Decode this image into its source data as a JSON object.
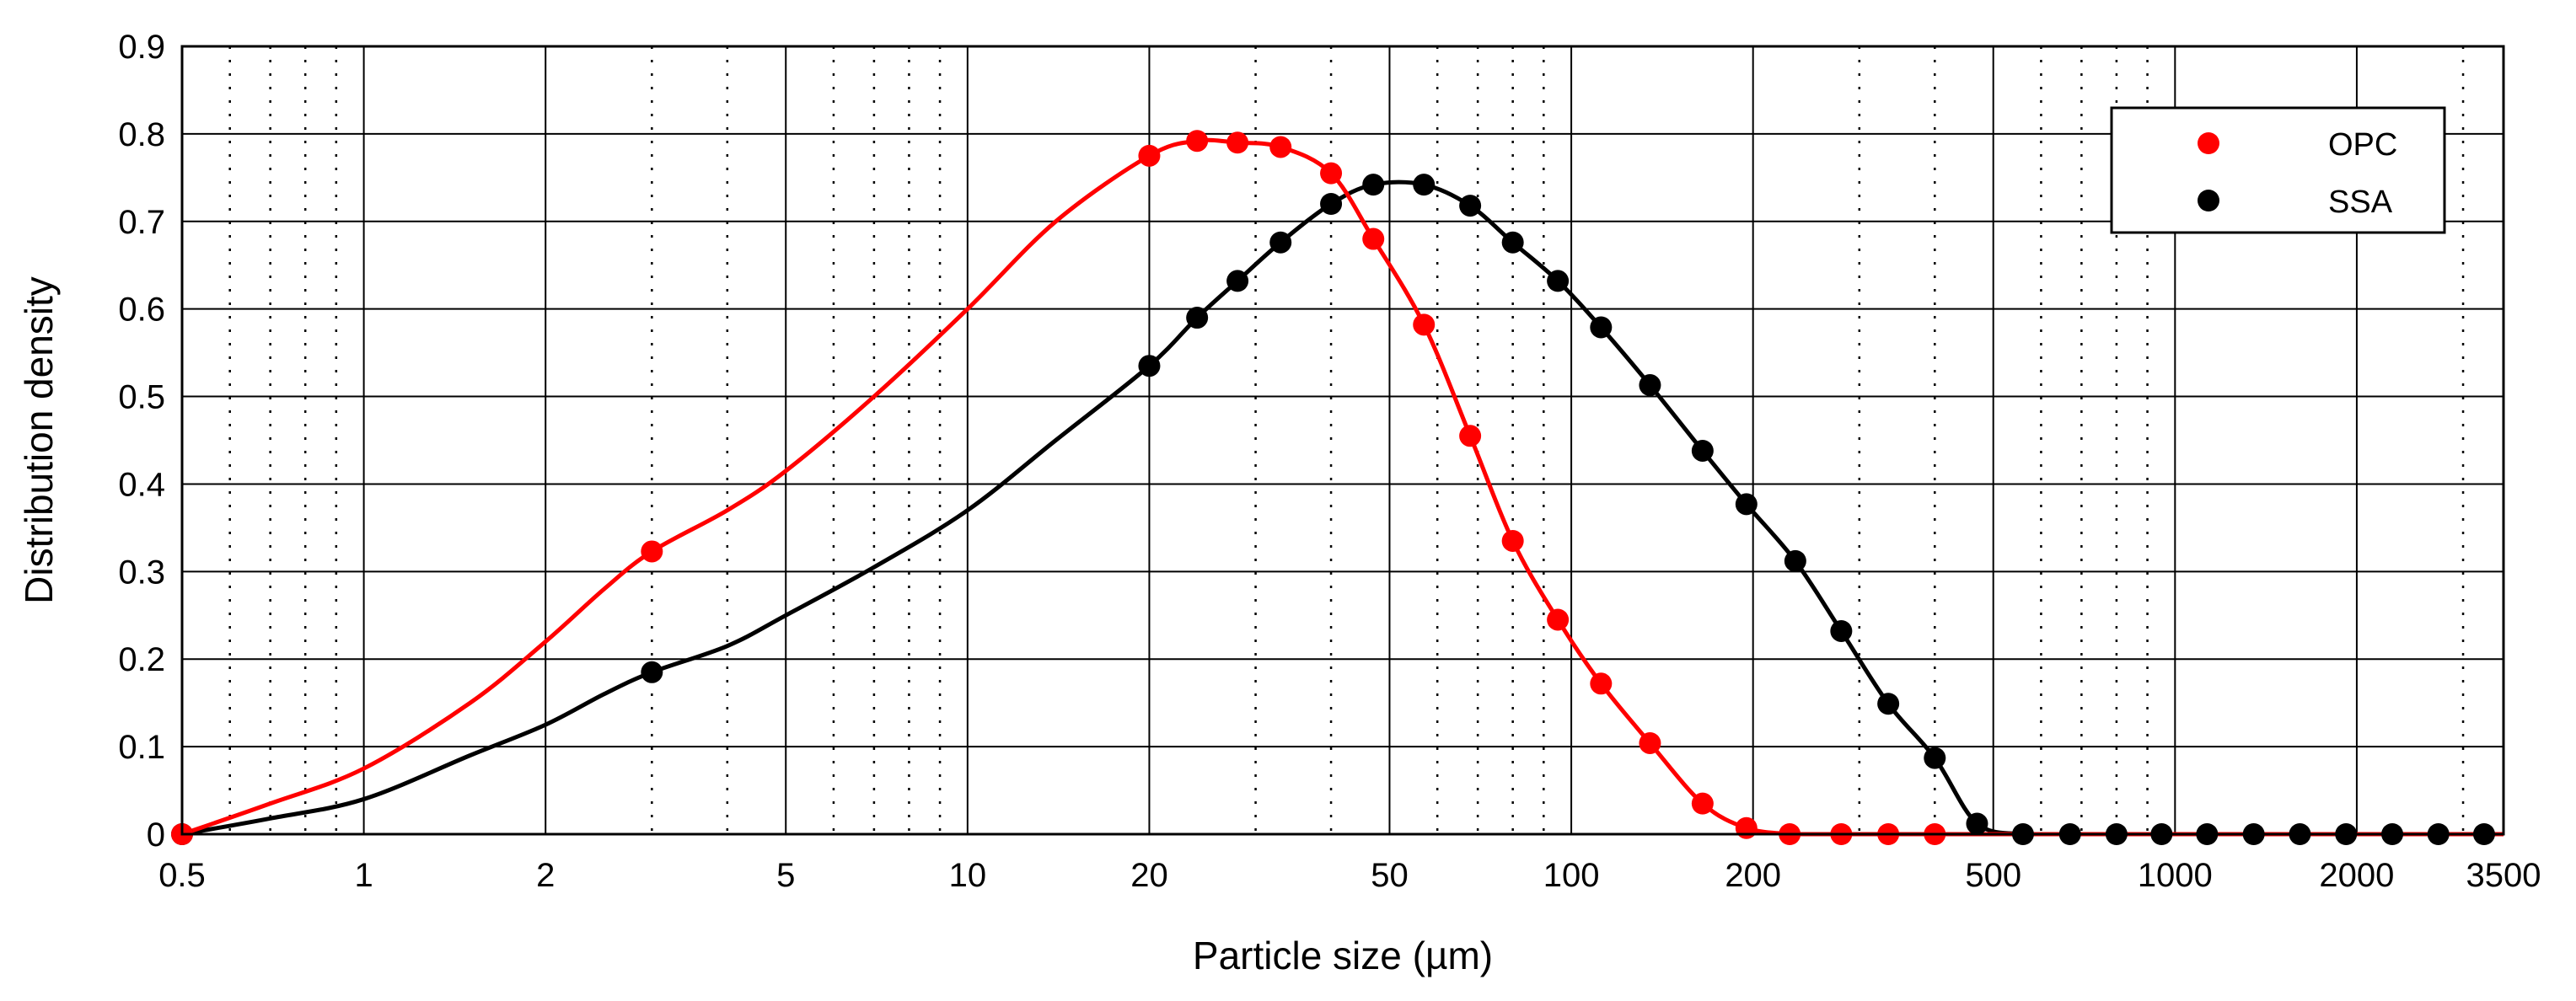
{
  "chart_data": {
    "type": "line",
    "xscale": "log",
    "xlabel": "Particle size (µm)",
    "ylabel": "Distribution density",
    "xlim": [
      0.5,
      3500
    ],
    "ylim": [
      0,
      0.9
    ],
    "x_tick_values": [
      0.5,
      1,
      2,
      5,
      10,
      20,
      50,
      100,
      200,
      500,
      1000,
      2000,
      3500
    ],
    "x_tick_labels": [
      "0.5",
      "1",
      "2",
      "5",
      "10",
      "20",
      "50",
      "100",
      "200",
      "500",
      "1000",
      "2000",
      "3500"
    ],
    "y_tick_values": [
      0,
      0.1,
      0.2,
      0.3,
      0.4,
      0.5,
      0.6,
      0.7,
      0.8,
      0.9
    ],
    "y_tick_labels": [
      "0",
      "0.1",
      "0.2",
      "0.3",
      "0.4",
      "0.5",
      "0.6",
      "0.7",
      "0.8",
      "0.9"
    ],
    "grid": true,
    "legend_position": "top-right",
    "series": [
      {
        "name": "OPC",
        "color": "#ff0000",
        "curve_x": [
          0.5,
          0.7,
          1,
          1.5,
          2,
          2.5,
          3,
          4,
          5,
          7,
          10,
          14,
          20,
          24,
          28,
          33,
          40,
          47,
          57,
          68,
          80,
          95,
          112,
          135,
          165,
          195,
          230
        ],
        "curve_y": [
          0,
          0.035,
          0.075,
          0.15,
          0.22,
          0.28,
          0.323,
          0.37,
          0.415,
          0.5,
          0.6,
          0.7,
          0.775,
          0.792,
          0.79,
          0.785,
          0.755,
          0.68,
          0.582,
          0.455,
          0.335,
          0.245,
          0.172,
          0.104,
          0.035,
          0.007,
          0
        ],
        "marker_x": [
          0.5,
          3,
          20,
          24,
          28,
          33,
          40,
          47,
          57,
          68,
          80,
          95,
          112,
          135,
          165,
          195,
          230,
          280,
          335,
          400
        ],
        "marker_y": [
          0,
          0.323,
          0.775,
          0.792,
          0.79,
          0.785,
          0.755,
          0.68,
          0.582,
          0.455,
          0.335,
          0.245,
          0.172,
          0.104,
          0.035,
          0.007,
          0,
          0,
          0,
          0
        ]
      },
      {
        "name": "SSA",
        "color": "#000000",
        "curve_x": [
          0.5,
          0.7,
          1,
          1.5,
          2,
          2.5,
          3,
          4,
          5,
          7,
          10,
          14,
          20,
          24,
          28,
          33,
          40,
          47,
          57,
          68,
          80,
          95,
          112,
          135,
          165,
          195,
          235,
          280,
          335,
          400,
          470,
          560
        ],
        "curve_y": [
          0,
          0.018,
          0.04,
          0.09,
          0.125,
          0.16,
          0.185,
          0.215,
          0.25,
          0.305,
          0.37,
          0.45,
          0.535,
          0.59,
          0.632,
          0.676,
          0.72,
          0.742,
          0.742,
          0.718,
          0.676,
          0.632,
          0.579,
          0.513,
          0.438,
          0.377,
          0.312,
          0.232,
          0.149,
          0.087,
          0.012,
          0
        ],
        "marker_x": [
          0.5,
          3,
          20,
          24,
          28,
          33,
          40,
          47,
          57,
          68,
          80,
          95,
          112,
          135,
          165,
          195,
          235,
          280,
          335,
          400,
          470,
          560,
          670,
          800,
          950,
          1130,
          1350,
          1610,
          1920,
          2290,
          2730,
          3250
        ],
        "marker_y": [
          0,
          0.185,
          0.535,
          0.59,
          0.632,
          0.676,
          0.72,
          0.742,
          0.742,
          0.718,
          0.676,
          0.632,
          0.579,
          0.513,
          0.438,
          0.377,
          0.312,
          0.232,
          0.149,
          0.087,
          0.012,
          0,
          0,
          0,
          0,
          0,
          0,
          0,
          0,
          0,
          0,
          0
        ]
      }
    ]
  }
}
